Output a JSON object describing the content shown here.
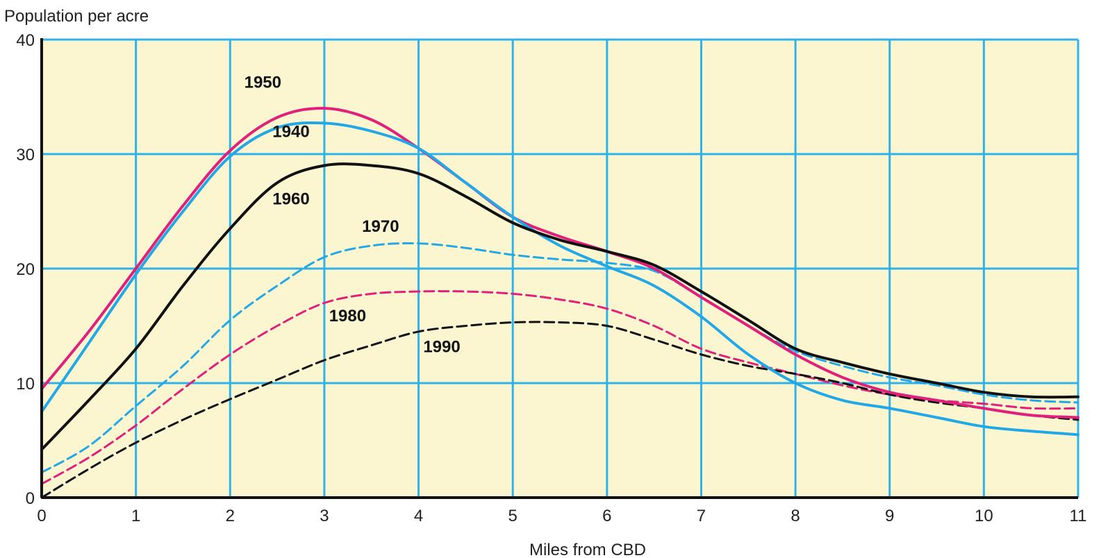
{
  "chart_data": {
    "type": "line",
    "title": "",
    "xlabel": "Miles from CBD",
    "ylabel": "Population per acre",
    "xlim": [
      0,
      11
    ],
    "ylim": [
      0,
      40
    ],
    "x_ticks": [
      "0",
      "1",
      "2",
      "3",
      "4",
      "5",
      "6",
      "7",
      "8",
      "9",
      "10",
      "11"
    ],
    "y_ticks": [
      "0",
      "10",
      "20",
      "30",
      "40"
    ],
    "grid": true,
    "legend": "inline labels",
    "colors": {
      "background": "#fbf6cf",
      "grid": "#2fb2e8",
      "axis": "#111111",
      "magenta": "#e0207a",
      "cyan": "#22a8e6",
      "black": "#111111"
    },
    "series": [
      {
        "name": "1950",
        "color": "#e0207a",
        "dash": "solid",
        "points": [
          [
            0,
            9.5
          ],
          [
            0.5,
            14.5
          ],
          [
            1,
            20
          ],
          [
            1.5,
            25.5
          ],
          [
            2,
            30.3
          ],
          [
            2.5,
            33.2
          ],
          [
            3,
            34
          ],
          [
            3.5,
            33
          ],
          [
            4,
            30.5
          ],
          [
            4.5,
            27.5
          ],
          [
            5,
            24.5
          ],
          [
            5.5,
            22.8
          ],
          [
            6,
            21.5
          ],
          [
            6.5,
            20
          ],
          [
            7,
            17.5
          ],
          [
            7.5,
            15
          ],
          [
            8,
            12.5
          ],
          [
            8.5,
            10.5
          ],
          [
            9,
            9.2
          ],
          [
            9.5,
            8.5
          ],
          [
            10,
            7.8
          ],
          [
            10.5,
            7.2
          ],
          [
            11,
            7
          ]
        ]
      },
      {
        "name": "1940",
        "color": "#22a8e6",
        "dash": "solid",
        "points": [
          [
            0,
            7.5
          ],
          [
            0.5,
            13.5
          ],
          [
            1,
            19.5
          ],
          [
            1.5,
            25
          ],
          [
            2,
            29.8
          ],
          [
            2.5,
            32.3
          ],
          [
            3,
            32.7
          ],
          [
            3.5,
            32
          ],
          [
            4,
            30.5
          ],
          [
            4.5,
            27.5
          ],
          [
            5,
            24.5
          ],
          [
            5.5,
            22
          ],
          [
            6,
            20.2
          ],
          [
            6.5,
            18.5
          ],
          [
            7,
            15.8
          ],
          [
            7.5,
            12.5
          ],
          [
            8,
            10
          ],
          [
            8.5,
            8.5
          ],
          [
            9,
            7.8
          ],
          [
            9.5,
            7
          ],
          [
            10,
            6.2
          ],
          [
            10.5,
            5.8
          ],
          [
            11,
            5.5
          ]
        ]
      },
      {
        "name": "1960",
        "color": "#111111",
        "dash": "solid",
        "points": [
          [
            0,
            4.2
          ],
          [
            0.5,
            8.5
          ],
          [
            1,
            13
          ],
          [
            1.5,
            18.5
          ],
          [
            2,
            23.5
          ],
          [
            2.5,
            27.5
          ],
          [
            3,
            29
          ],
          [
            3.5,
            29
          ],
          [
            4,
            28.3
          ],
          [
            4.5,
            26.3
          ],
          [
            5,
            24
          ],
          [
            5.5,
            22.5
          ],
          [
            6,
            21.5
          ],
          [
            6.5,
            20.3
          ],
          [
            7,
            18
          ],
          [
            7.5,
            15.5
          ],
          [
            8,
            13
          ],
          [
            8.5,
            11.8
          ],
          [
            9,
            10.8
          ],
          [
            9.5,
            10
          ],
          [
            10,
            9.2
          ],
          [
            10.5,
            8.8
          ],
          [
            11,
            8.8
          ]
        ]
      },
      {
        "name": "1970",
        "color": "#22a8e6",
        "dash": "dashed",
        "points": [
          [
            0,
            2.2
          ],
          [
            0.5,
            4.5
          ],
          [
            1,
            8
          ],
          [
            1.5,
            11.5
          ],
          [
            2,
            15.5
          ],
          [
            2.5,
            18.5
          ],
          [
            3,
            21
          ],
          [
            3.5,
            22
          ],
          [
            4,
            22.2
          ],
          [
            4.5,
            21.8
          ],
          [
            5,
            21.2
          ],
          [
            5.5,
            20.8
          ],
          [
            6,
            20.5
          ],
          [
            6.5,
            19.8
          ],
          [
            7,
            17.5
          ],
          [
            7.5,
            15
          ],
          [
            8,
            12.8
          ],
          [
            8.5,
            11.5
          ],
          [
            9,
            10.5
          ],
          [
            9.5,
            9.8
          ],
          [
            10,
            9
          ],
          [
            10.5,
            8.5
          ],
          [
            11,
            8.3
          ]
        ]
      },
      {
        "name": "1980",
        "color": "#e0207a",
        "dash": "dashed",
        "points": [
          [
            0,
            1.2
          ],
          [
            0.5,
            3.5
          ],
          [
            1,
            6.3
          ],
          [
            1.5,
            9.5
          ],
          [
            2,
            12.5
          ],
          [
            2.5,
            15
          ],
          [
            3,
            17
          ],
          [
            3.5,
            17.8
          ],
          [
            4,
            18
          ],
          [
            4.5,
            18
          ],
          [
            5,
            17.8
          ],
          [
            5.5,
            17.3
          ],
          [
            6,
            16.5
          ],
          [
            6.5,
            15
          ],
          [
            7,
            13
          ],
          [
            7.5,
            11.8
          ],
          [
            8,
            10.8
          ],
          [
            8.5,
            9.8
          ],
          [
            9,
            9
          ],
          [
            9.5,
            8.5
          ],
          [
            10,
            8.2
          ],
          [
            10.5,
            7.8
          ],
          [
            11,
            7.8
          ]
        ]
      },
      {
        "name": "1990",
        "color": "#111111",
        "dash": "dashed",
        "points": [
          [
            0,
            0
          ],
          [
            0.5,
            2.5
          ],
          [
            1,
            4.8
          ],
          [
            1.5,
            6.8
          ],
          [
            2,
            8.6
          ],
          [
            2.5,
            10.3
          ],
          [
            3,
            12
          ],
          [
            3.5,
            13.3
          ],
          [
            4,
            14.5
          ],
          [
            4.5,
            15
          ],
          [
            5,
            15.3
          ],
          [
            5.5,
            15.3
          ],
          [
            6,
            15
          ],
          [
            6.5,
            13.8
          ],
          [
            7,
            12.5
          ],
          [
            7.5,
            11.5
          ],
          [
            8,
            10.8
          ],
          [
            8.5,
            10
          ],
          [
            9,
            9
          ],
          [
            9.5,
            8.3
          ],
          [
            10,
            7.8
          ],
          [
            10.5,
            7.2
          ],
          [
            11,
            6.8
          ]
        ]
      }
    ],
    "labels": [
      {
        "text": "1950",
        "x": 2.15,
        "y": 35.8
      },
      {
        "text": "1940",
        "x": 2.45,
        "y": 31.5
      },
      {
        "text": "1960",
        "x": 2.45,
        "y": 25.6
      },
      {
        "text": "1970",
        "x": 3.4,
        "y": 23.2
      },
      {
        "text": "1980",
        "x": 3.05,
        "y": 15.4
      },
      {
        "text": "1990",
        "x": 4.05,
        "y": 12.7
      }
    ]
  }
}
